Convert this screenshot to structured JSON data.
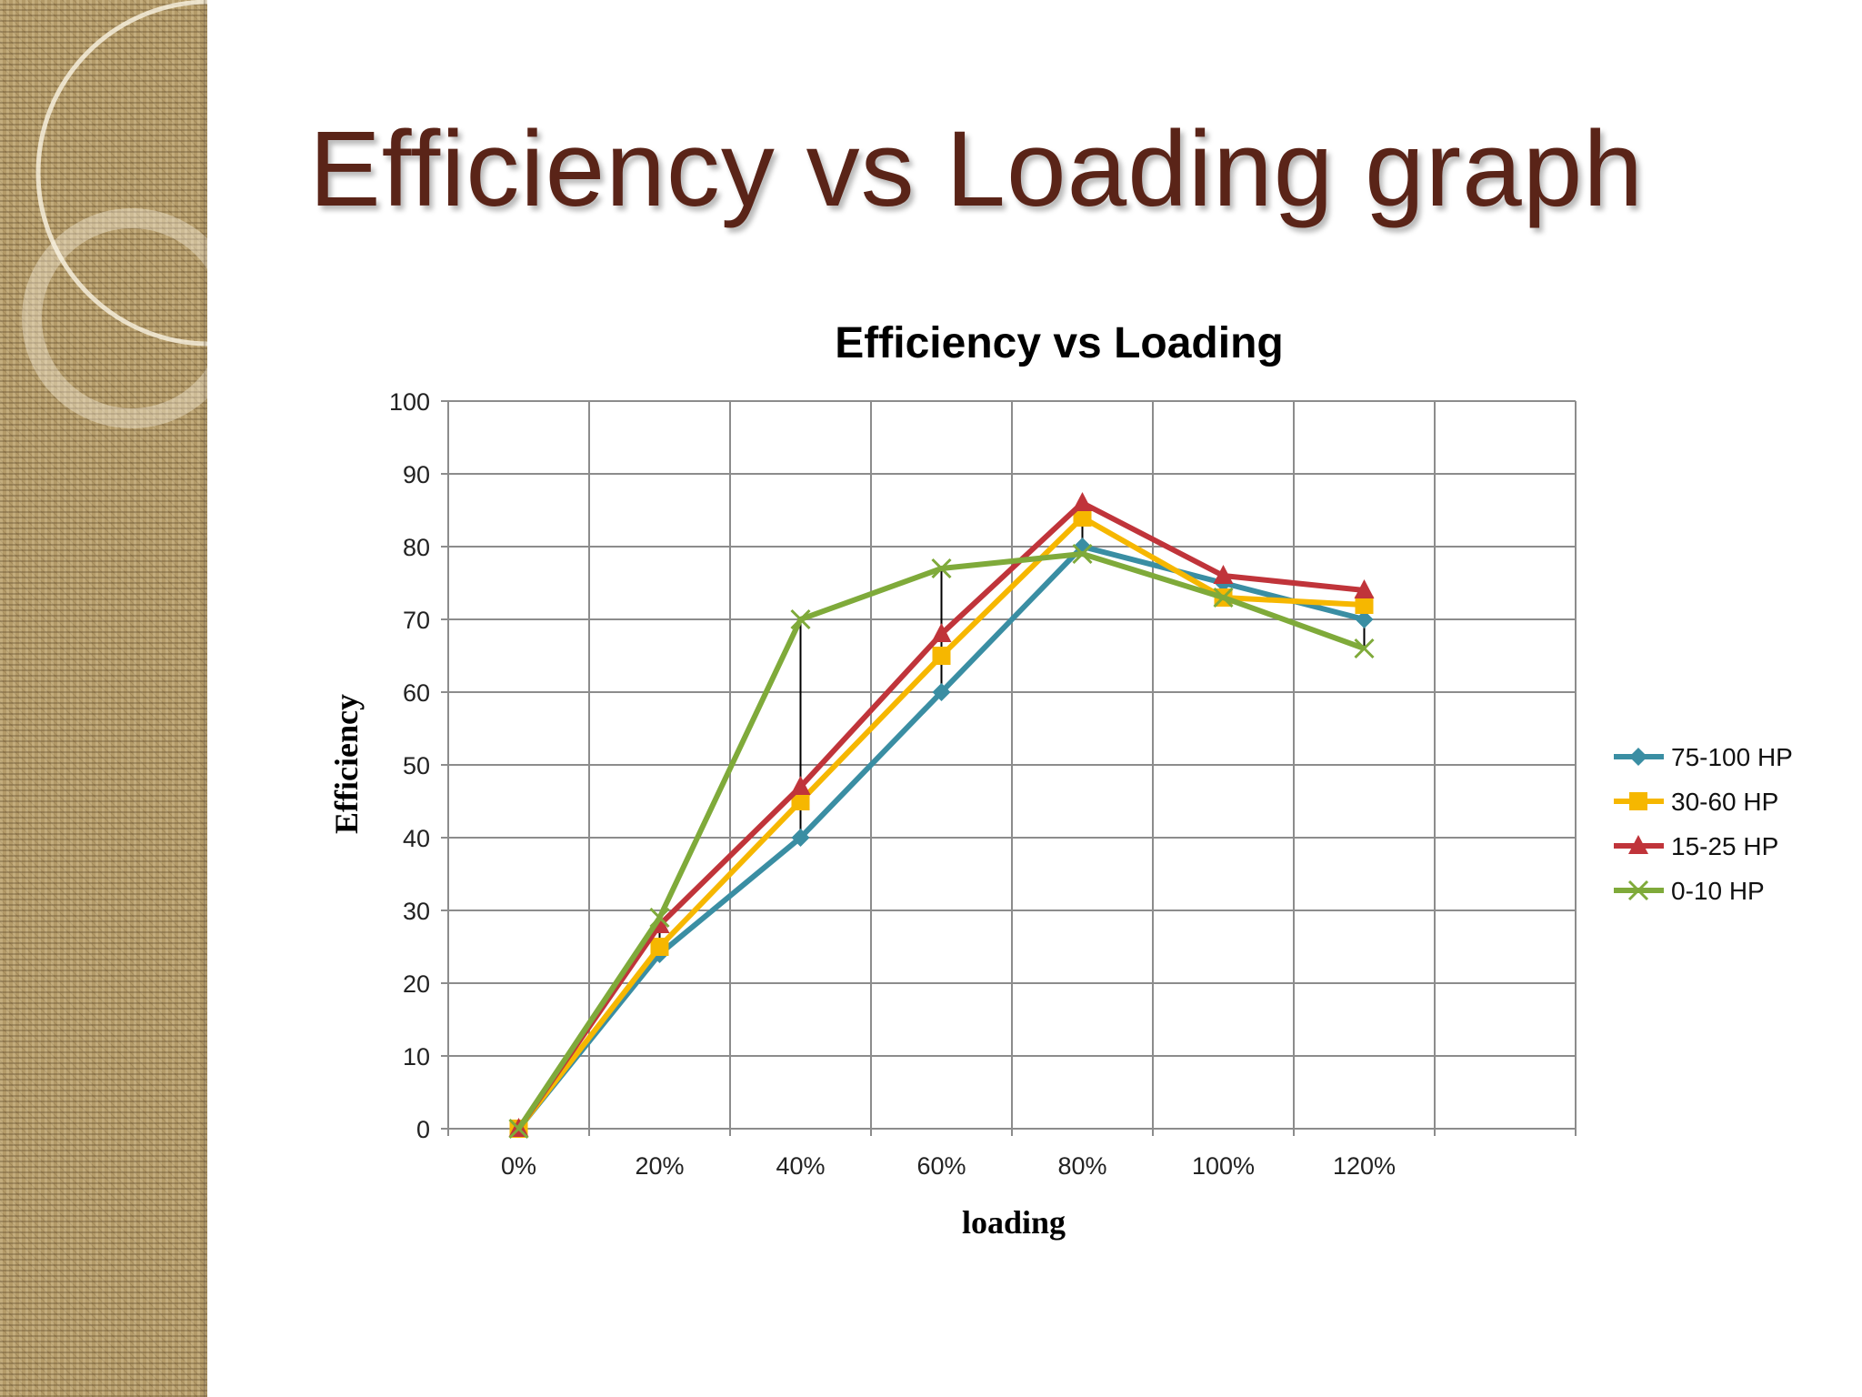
{
  "slide": {
    "title": "Efficiency vs Loading graph"
  },
  "colors": {
    "title": "#5a2418",
    "background_strip": "#b39a68"
  },
  "chart_data": {
    "type": "line",
    "title": "Efficiency vs Loading",
    "xlabel": "loading",
    "ylabel": "Efficiency",
    "categories": [
      "0%",
      "20%",
      "40%",
      "60%",
      "80%",
      "100%",
      "120%"
    ],
    "category_slots": 8,
    "ylim": [
      0,
      100
    ],
    "yticks": [
      0,
      10,
      20,
      30,
      40,
      50,
      60,
      70,
      80,
      90,
      100
    ],
    "grid": true,
    "legend_position": "right",
    "high_low_lines": true,
    "series": [
      {
        "name": "75-100 HP",
        "color": "#3a8ea3",
        "marker": "diamond",
        "values": [
          0,
          24,
          40,
          60,
          80,
          75,
          70
        ]
      },
      {
        "name": "30-60 HP",
        "color": "#f6b700",
        "marker": "square",
        "values": [
          0,
          25,
          45,
          65,
          84,
          73,
          72
        ]
      },
      {
        "name": "15-25 HP",
        "color": "#c0343a",
        "marker": "triangle",
        "values": [
          0,
          28,
          47,
          68,
          86,
          76,
          74
        ]
      },
      {
        "name": "0-10 HP",
        "color": "#7faa3a",
        "marker": "x",
        "values": [
          0,
          29,
          70,
          77,
          79,
          73,
          66
        ]
      }
    ]
  }
}
